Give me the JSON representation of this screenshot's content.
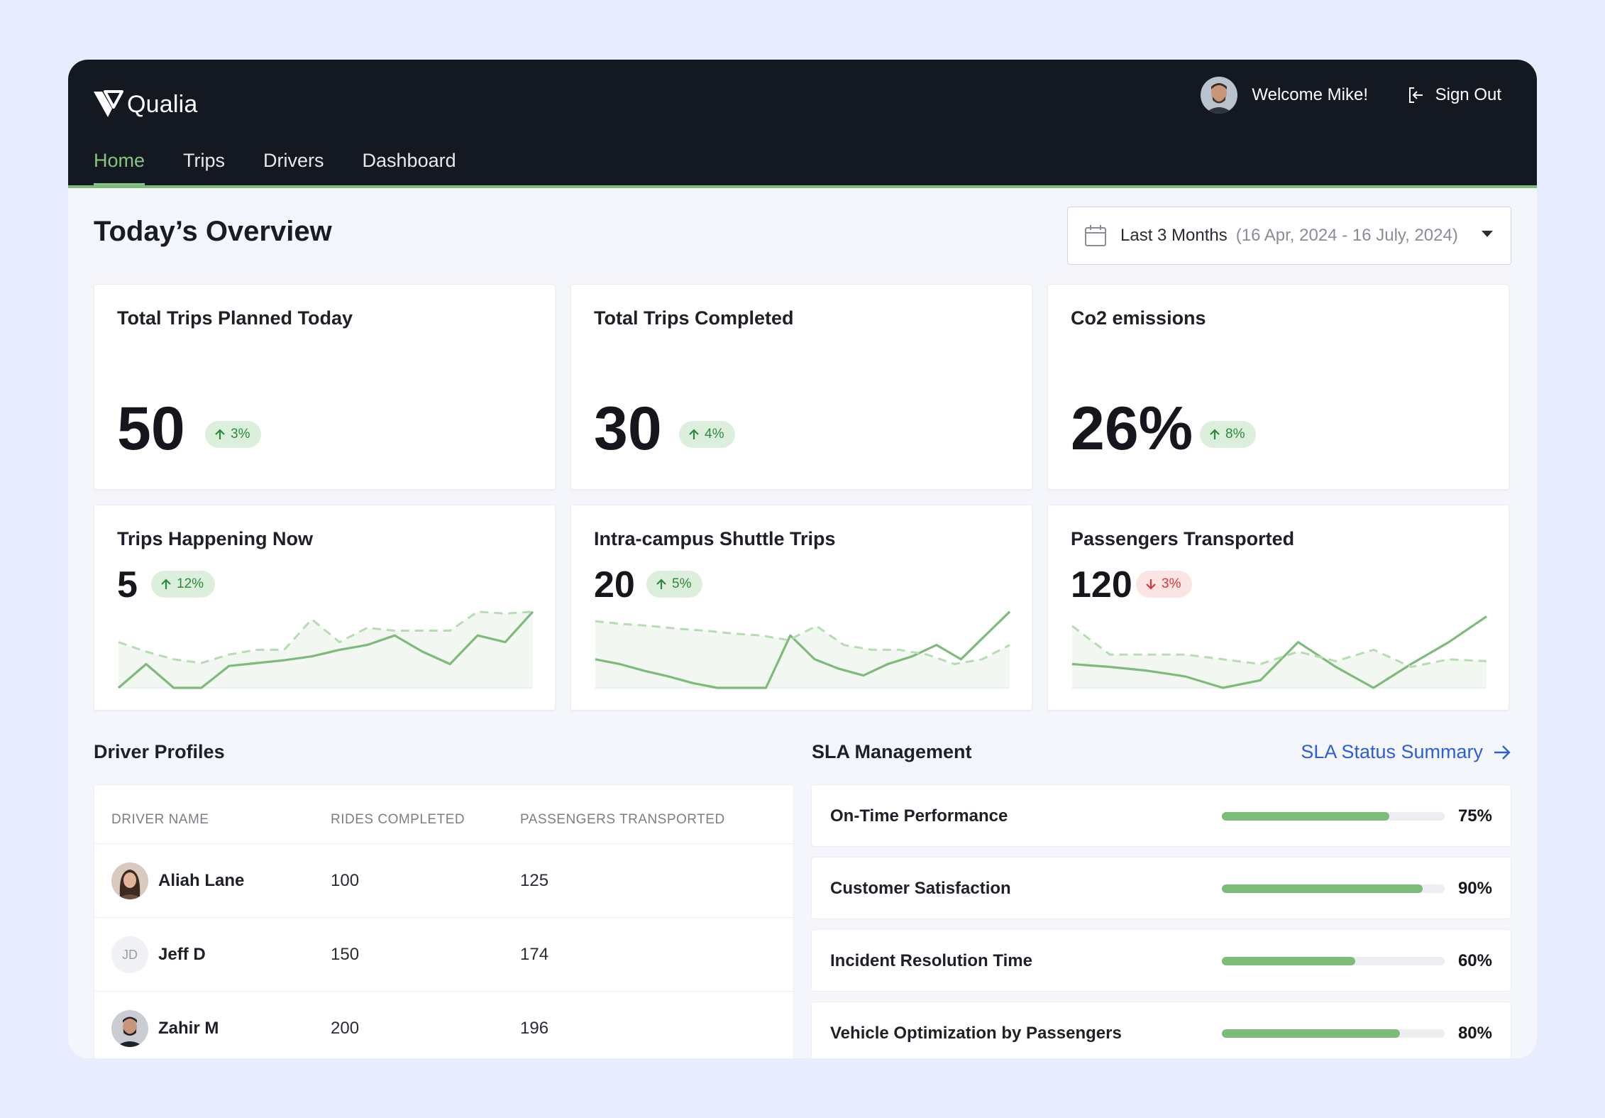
{
  "header": {
    "brand": "Qualia",
    "nav": [
      {
        "label": "Home",
        "active": true
      },
      {
        "label": "Trips",
        "active": false
      },
      {
        "label": "Drivers",
        "active": false
      },
      {
        "label": "Dashboard",
        "active": false
      }
    ],
    "welcome": "Welcome Mike!",
    "sign_out": "Sign Out"
  },
  "overview": {
    "title": "Today’s Overview",
    "date_filter": {
      "label": "Last 3 Months",
      "range": "(16 Apr, 2024 - 16 July, 2024)"
    }
  },
  "stats": [
    {
      "title": "Total Trips Planned Today",
      "value": "50",
      "change": "3%",
      "direction": "up"
    },
    {
      "title": "Total Trips Completed",
      "value": "30",
      "change": "4%",
      "direction": "up"
    },
    {
      "title": "Co2 emissions",
      "value": "26%",
      "change": "8%",
      "direction": "up"
    }
  ],
  "trend_cards": [
    {
      "title": "Trips Happening Now",
      "value": "5",
      "change": "12%",
      "direction": "up"
    },
    {
      "title": "Intra-campus Shuttle Trips",
      "value": "20",
      "change": "5%",
      "direction": "up"
    },
    {
      "title": "Passengers Transported",
      "value": "120",
      "change": "3%",
      "direction": "down"
    }
  ],
  "chart_data": [
    {
      "type": "line",
      "series": [
        {
          "style": "solid",
          "values": [
            0,
            25,
            0,
            0,
            23,
            26,
            29,
            33,
            40,
            45,
            55,
            38,
            25,
            55,
            48,
            80
          ]
        },
        {
          "style": "dashed",
          "values": [
            48,
            38,
            30,
            26,
            35,
            40,
            40,
            72,
            48,
            63,
            60,
            60,
            60,
            80,
            78,
            80
          ]
        }
      ]
    },
    {
      "type": "line",
      "series": [
        {
          "style": "solid",
          "values": [
            30,
            25,
            18,
            12,
            5,
            0,
            0,
            0,
            55,
            30,
            20,
            13,
            25,
            33,
            45,
            30,
            55,
            80
          ]
        },
        {
          "style": "dashed",
          "values": [
            70,
            67,
            65,
            62,
            60,
            57,
            55,
            50,
            65,
            45,
            40,
            40,
            35,
            25,
            30,
            45
          ]
        }
      ]
    },
    {
      "type": "line",
      "series": [
        {
          "style": "solid",
          "values": [
            25,
            22,
            18,
            12,
            0,
            8,
            48,
            22,
            0,
            25,
            48,
            75
          ]
        },
        {
          "style": "dashed",
          "values": [
            65,
            35,
            35,
            35,
            30,
            25,
            38,
            28,
            40,
            22,
            30,
            28
          ]
        }
      ]
    }
  ],
  "drivers": {
    "title": "Driver Profiles",
    "columns": [
      "DRIVER NAME",
      "RIDES COMPLETED",
      "PASSENGERS TRANSPORTED"
    ],
    "rows": [
      {
        "name": "Aliah Lane",
        "rides": "100",
        "passengers": "125",
        "initials": ""
      },
      {
        "name": "Jeff D",
        "rides": "150",
        "passengers": "174",
        "initials": "JD"
      },
      {
        "name": "Zahir M",
        "rides": "200",
        "passengers": "196",
        "initials": ""
      }
    ]
  },
  "sla": {
    "title": "SLA Management",
    "link": "SLA Status Summary",
    "items": [
      {
        "label": "On-Time Performance",
        "value": 75,
        "display": "75%"
      },
      {
        "label": "Customer Satisfaction",
        "value": 90,
        "display": "90%"
      },
      {
        "label": "Incident Resolution Time",
        "value": 60,
        "display": "60%"
      },
      {
        "label": "Vehicle Optimization by Passengers",
        "value": 80,
        "display": "80%"
      }
    ]
  },
  "colors": {
    "accent_green": "#7dbb78",
    "header_bg": "#141821",
    "link_blue": "#2b5fd9",
    "down_red": "#d63838"
  }
}
